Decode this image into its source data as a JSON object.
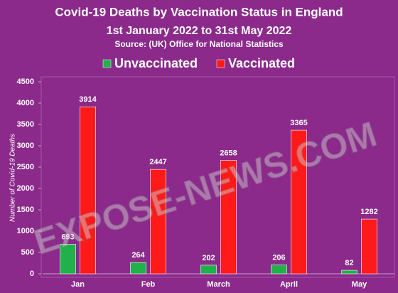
{
  "chart_data": {
    "type": "bar",
    "title": "Covid-19 Deaths by Vaccination Status in England",
    "subtitle": "1st January 2022 to 31st May 2022",
    "source": "Source:  (UK) Office for National Statistics",
    "ylabel": "Number of Covid-19 Deaths",
    "watermark": "EXPOSE-NEWS.COM",
    "categories": [
      "Jan",
      "Feb",
      "March",
      "April",
      "May"
    ],
    "series": [
      {
        "name": "Unvaccinated",
        "color": "#21b14b",
        "values": [
          693,
          264,
          202,
          206,
          82
        ]
      },
      {
        "name": "Vaccinated",
        "color": "#ff1a1a",
        "values": [
          3914,
          2447,
          2658,
          3365,
          1282
        ]
      }
    ],
    "ylim": [
      0,
      4500
    ],
    "yticks": [
      0,
      500,
      1000,
      1500,
      2000,
      2500,
      3000,
      3500,
      4000,
      4500
    ],
    "grid": false
  }
}
